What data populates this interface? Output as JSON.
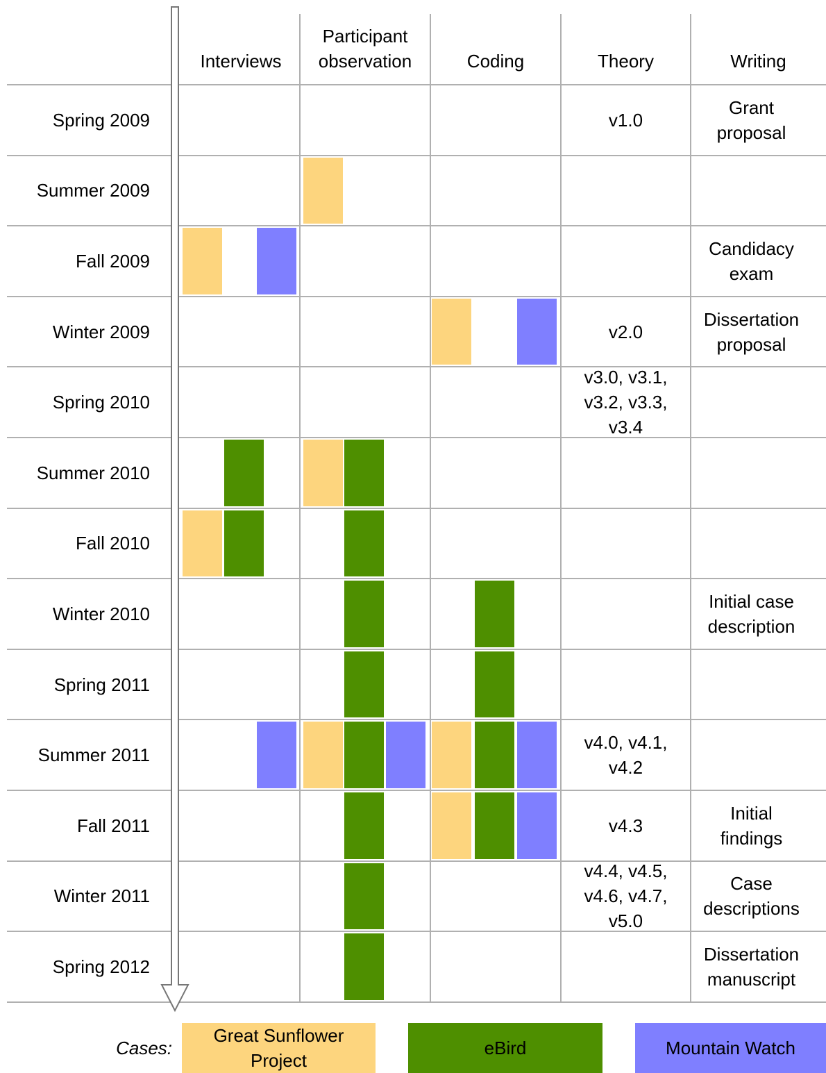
{
  "columns": [
    "Interviews",
    "Participant\nobservation",
    "Coding",
    "Theory",
    "Writing"
  ],
  "rows": [
    {
      "label": "Spring 2009",
      "interviews": [
        false,
        false,
        false
      ],
      "participant_observation": [
        false,
        false,
        false
      ],
      "coding": [
        false,
        false,
        false
      ],
      "theory": "v1.0",
      "writing": "Grant\nproposal"
    },
    {
      "label": "Summer 2009",
      "interviews": [
        false,
        false,
        false
      ],
      "participant_observation": [
        true,
        false,
        false
      ],
      "coding": [
        false,
        false,
        false
      ],
      "theory": null,
      "writing": null
    },
    {
      "label": "Fall 2009",
      "interviews": [
        true,
        false,
        true
      ],
      "participant_observation": [
        false,
        false,
        false
      ],
      "coding": [
        false,
        false,
        false
      ],
      "theory": null,
      "writing": "Candidacy\nexam"
    },
    {
      "label": "Winter 2009",
      "interviews": [
        false,
        false,
        false
      ],
      "participant_observation": [
        false,
        false,
        false
      ],
      "coding": [
        true,
        false,
        true
      ],
      "theory": "v2.0",
      "writing": "Dissertation\nproposal"
    },
    {
      "label": "Spring 2010",
      "interviews": [
        false,
        false,
        false
      ],
      "participant_observation": [
        false,
        false,
        false
      ],
      "coding": [
        false,
        false,
        false
      ],
      "theory": "v3.0, v3.1,\nv3.2, v3.3,\nv3.4",
      "writing": null
    },
    {
      "label": "Summer 2010",
      "interviews": [
        false,
        true,
        false
      ],
      "participant_observation": [
        true,
        true,
        false
      ],
      "coding": [
        false,
        false,
        false
      ],
      "theory": null,
      "writing": null
    },
    {
      "label": "Fall 2010",
      "interviews": [
        true,
        true,
        false
      ],
      "participant_observation": [
        false,
        true,
        false
      ],
      "coding": [
        false,
        false,
        false
      ],
      "theory": null,
      "writing": null
    },
    {
      "label": "Winter 2010",
      "interviews": [
        false,
        false,
        false
      ],
      "participant_observation": [
        false,
        true,
        false
      ],
      "coding": [
        false,
        true,
        false
      ],
      "theory": null,
      "writing": "Initial case\ndescription"
    },
    {
      "label": "Spring 2011",
      "interviews": [
        false,
        false,
        false
      ],
      "participant_observation": [
        false,
        true,
        false
      ],
      "coding": [
        false,
        true,
        false
      ],
      "theory": null,
      "writing": null
    },
    {
      "label": "Summer 2011",
      "interviews": [
        false,
        false,
        true
      ],
      "participant_observation": [
        true,
        true,
        true
      ],
      "coding": [
        true,
        true,
        true
      ],
      "theory": "v4.0, v4.1,\nv4.2",
      "writing": null
    },
    {
      "label": "Fall 2011",
      "interviews": [
        false,
        false,
        false
      ],
      "participant_observation": [
        false,
        true,
        false
      ],
      "coding": [
        true,
        true,
        true
      ],
      "theory": "v4.3",
      "writing": "Initial\nfindings"
    },
    {
      "label": "Winter 2011",
      "interviews": [
        false,
        false,
        false
      ],
      "participant_observation": [
        false,
        true,
        false
      ],
      "coding": [
        false,
        false,
        false
      ],
      "theory": "v4.4, v4.5,\nv4.6, v4.7,\nv5.0",
      "writing": "Case\ndescriptions"
    },
    {
      "label": "Spring 2012",
      "interviews": [
        false,
        false,
        false
      ],
      "participant_observation": [
        false,
        true,
        false
      ],
      "coding": [
        false,
        false,
        false
      ],
      "theory": null,
      "writing": "Dissertation\nmanuscript"
    }
  ],
  "legend": {
    "title": "Cases:",
    "items": [
      {
        "name": "Great Sunflower\nProject",
        "color": "#fdd57e"
      },
      {
        "name": "eBird",
        "color": "#4e8f00"
      },
      {
        "name": "Mountain Watch",
        "color": "#7f7fff"
      }
    ]
  }
}
